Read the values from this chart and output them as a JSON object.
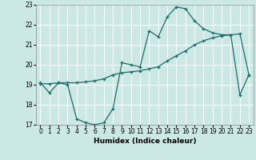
{
  "xlabel": "Humidex (Indice chaleur)",
  "ylabel": "",
  "background_color": "#cce8e4",
  "grid_color": "#ffffff",
  "line_color": "#1a6b6b",
  "xlim": [
    -0.5,
    23.5
  ],
  "ylim": [
    17,
    23
  ],
  "xticks": [
    0,
    1,
    2,
    3,
    4,
    5,
    6,
    7,
    8,
    9,
    10,
    11,
    12,
    13,
    14,
    15,
    16,
    17,
    18,
    19,
    20,
    21,
    22,
    23
  ],
  "yticks": [
    17,
    18,
    19,
    20,
    21,
    22,
    23
  ],
  "series1_x": [
    0,
    1,
    2,
    3,
    4,
    5,
    6,
    7,
    8,
    9,
    10,
    11,
    12,
    13,
    14,
    15,
    16,
    17,
    18,
    19,
    20,
    21,
    22,
    23
  ],
  "series1_y": [
    19.1,
    18.6,
    19.1,
    19.0,
    17.3,
    17.1,
    17.0,
    17.1,
    17.8,
    20.1,
    20.0,
    19.9,
    21.7,
    21.4,
    22.4,
    22.9,
    22.8,
    22.2,
    21.8,
    21.6,
    21.5,
    21.5,
    18.5,
    19.5
  ],
  "series2_x": [
    0,
    1,
    2,
    3,
    4,
    5,
    6,
    7,
    8,
    9,
    10,
    11,
    12,
    13,
    14,
    15,
    16,
    17,
    18,
    19,
    20,
    21,
    22,
    23
  ],
  "series2_y": [
    19.05,
    19.05,
    19.1,
    19.1,
    19.1,
    19.15,
    19.2,
    19.3,
    19.5,
    19.6,
    19.65,
    19.7,
    19.8,
    19.9,
    20.2,
    20.45,
    20.7,
    21.0,
    21.2,
    21.35,
    21.45,
    21.5,
    21.55,
    19.5
  ]
}
